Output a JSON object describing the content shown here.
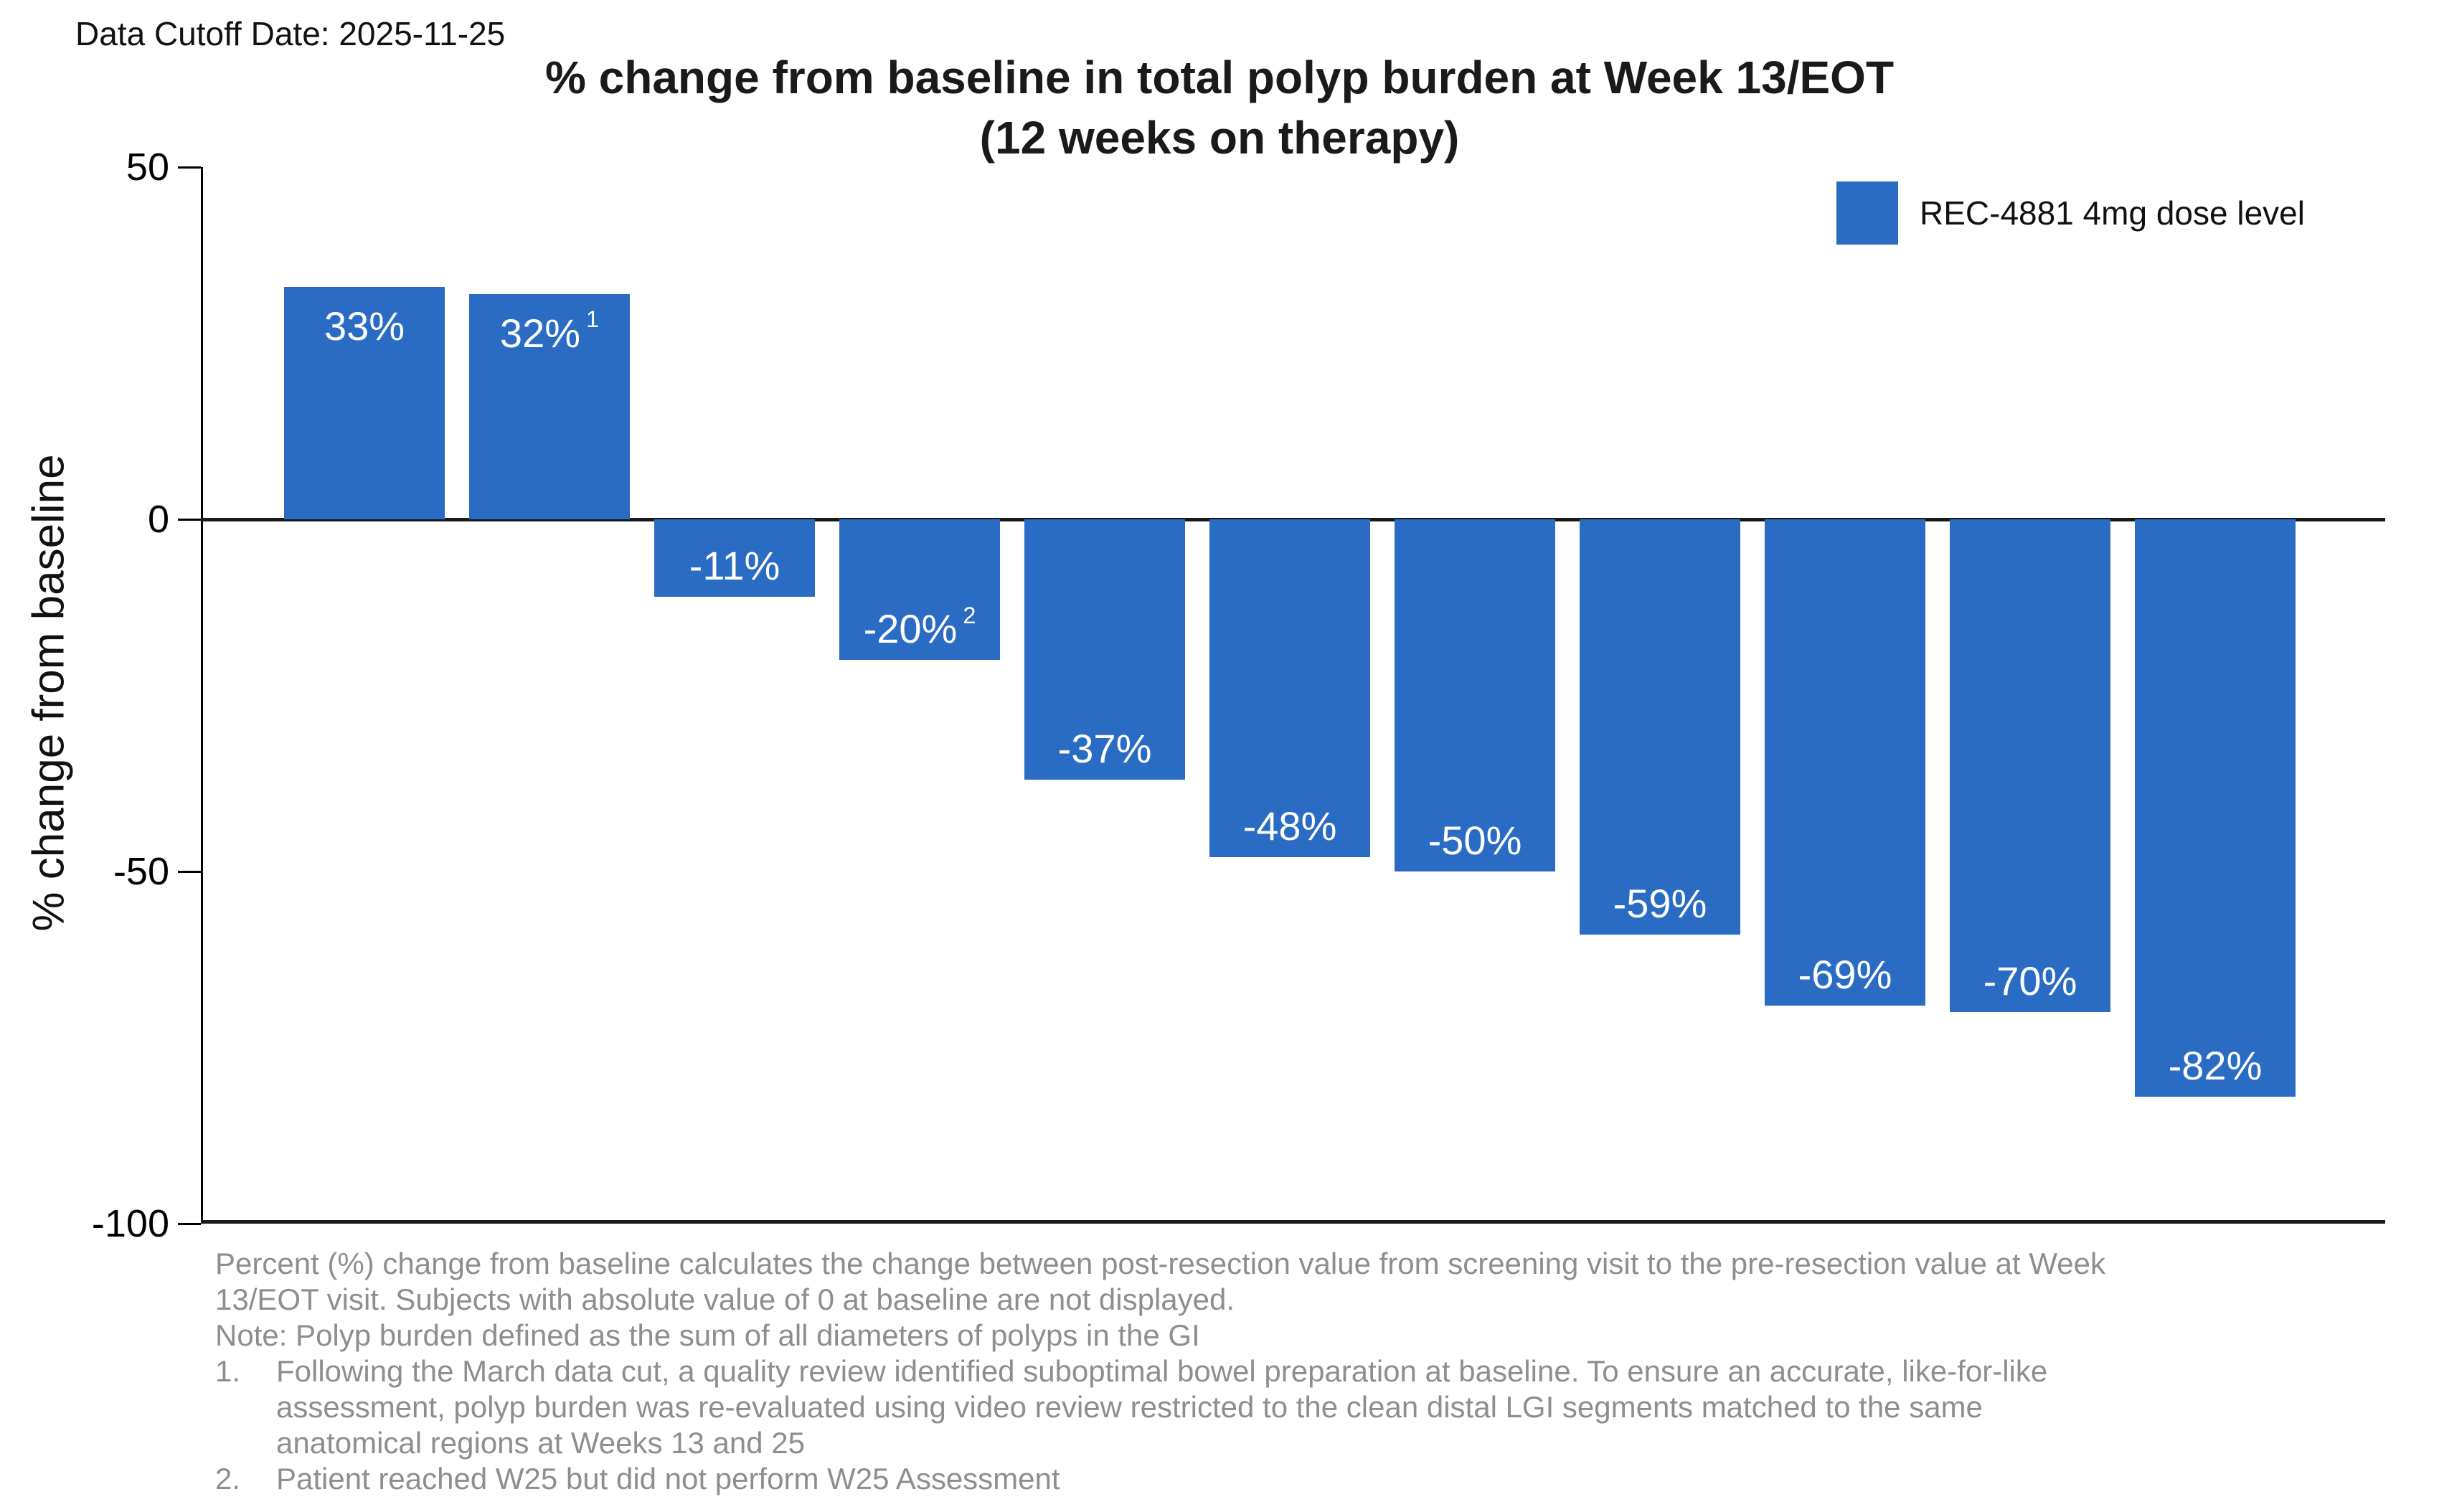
{
  "header": {
    "data_cutoff": "Data Cutoff Date: 2025-11-25"
  },
  "chart_data": {
    "type": "bar",
    "title_line1": "% change from baseline in total polyp burden at Week 13/EOT",
    "title_line2": "(12 weeks on therapy)",
    "ylabel": "% change from baseline",
    "ylim": [
      -100,
      50
    ],
    "yticks": [
      50,
      0,
      -50,
      -100
    ],
    "grid": false,
    "x_axis_note": "one bar per subject, no x tick labels shown",
    "bar_color": "#2a6cc4",
    "label_color": "#ffffff",
    "legend": {
      "label": "REC-4881 4mg dose level",
      "position": "upper right"
    },
    "values": [
      33,
      32,
      -11,
      -20,
      -37,
      -48,
      -50,
      -59,
      -69,
      -70,
      -82
    ],
    "bar_labels": [
      {
        "text": "33%",
        "sup": ""
      },
      {
        "text": "32%",
        "sup": "1"
      },
      {
        "text": "-11%",
        "sup": ""
      },
      {
        "text": "-20%",
        "sup": "2"
      },
      {
        "text": "-37%",
        "sup": ""
      },
      {
        "text": "-48%",
        "sup": ""
      },
      {
        "text": "-50%",
        "sup": ""
      },
      {
        "text": "-59%",
        "sup": ""
      },
      {
        "text": "-69%",
        "sup": ""
      },
      {
        "text": "-70%",
        "sup": ""
      },
      {
        "text": "-82%",
        "sup": ""
      }
    ]
  },
  "footnotes": {
    "plain_lines": [
      "Percent (%) change from baseline calculates the change between post-resection value from screening visit to the pre-resection value at Week",
      "13/EOT visit. Subjects with absolute value of 0 at baseline are not displayed.",
      "Note: Polyp burden defined as the sum of all diameters of polyps in the GI"
    ],
    "items": [
      {
        "num": "1.",
        "lines": [
          "Following the March data cut, a quality review identified suboptimal bowel preparation at baseline. To ensure an accurate, like-for-like",
          "assessment, polyp burden was re-evaluated using video review restricted to the clean distal LGI segments matched to the same",
          "anatomical regions at Weeks 13 and 25"
        ]
      },
      {
        "num": "2.",
        "lines": [
          "Patient reached W25 but did not perform W25 Assessment"
        ]
      }
    ]
  }
}
